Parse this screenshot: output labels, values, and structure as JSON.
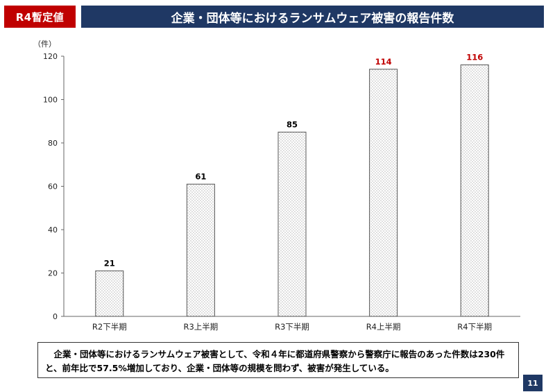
{
  "header": {
    "badge": "R4暫定値",
    "title": "企業・団体等におけるランサムウェア被害の報告件数"
  },
  "chart_data": {
    "type": "bar",
    "title": "",
    "ylabel": "（件）",
    "xlabel": "",
    "categories": [
      "R2下半期",
      "R3上半期",
      "R3下半期",
      "R4上半期",
      "R4下半期"
    ],
    "values": [
      21,
      61,
      85,
      114,
      116
    ],
    "value_label_colors": [
      "#000000",
      "#000000",
      "#000000",
      "#c00000",
      "#c00000"
    ],
    "ylim": [
      0,
      120
    ],
    "yticks": [
      0,
      20,
      40,
      60,
      80,
      100,
      120
    ],
    "grid": false,
    "legend": "none",
    "bar_pattern": "dotted"
  },
  "note": "企業・団体等におけるランサムウェア被害として、令和４年に都道府県警察から警察庁に報告のあった件数は230件と、前年比で57.5%増加しており、企業・団体等の規模を問わず、被害が発生している。",
  "page_number": "11",
  "colors": {
    "badge": "#c00000",
    "title_bar": "#1f3864",
    "highlight": "#c00000"
  }
}
